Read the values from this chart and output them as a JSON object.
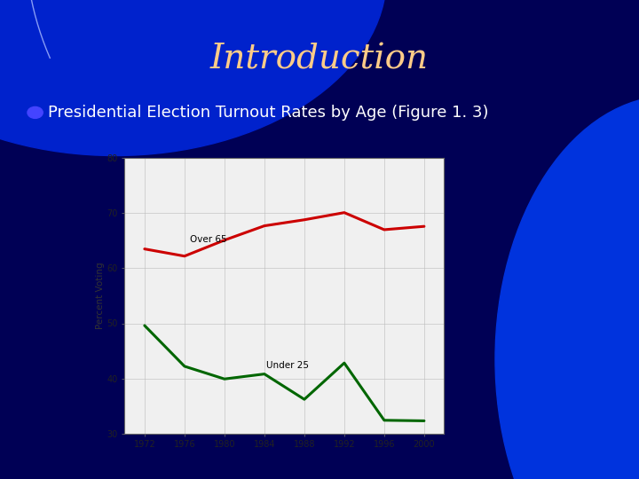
{
  "title": "Introduction",
  "bullet_text": "Presidential Election Turnout Rates by Age (Figure 1. 3)",
  "years": [
    1972,
    1976,
    1980,
    1984,
    1988,
    1992,
    1996,
    2000
  ],
  "over65": [
    63.5,
    62.2,
    65.1,
    67.7,
    68.8,
    70.1,
    67.0,
    67.6
  ],
  "under25": [
    49.6,
    42.2,
    39.9,
    40.8,
    36.2,
    42.8,
    32.4,
    32.3
  ],
  "over65_color": "#cc0000",
  "under25_color": "#006600",
  "ylabel": "Percent Voting",
  "ylim": [
    30,
    80
  ],
  "yticks": [
    30,
    40,
    50,
    60,
    70,
    80
  ],
  "xticks": [
    1972,
    1976,
    1980,
    1984,
    1988,
    1992,
    1996,
    2000
  ],
  "over65_label": "Over 65",
  "under25_label": "Under 25",
  "title_color": "#ffcc88",
  "bullet_color": "#ffffff",
  "bullet_dot_color": "#4444ff",
  "chart_bg": "#f0f0f0",
  "line_width": 2.2,
  "title_fontsize": 28,
  "bullet_fontsize": 13
}
